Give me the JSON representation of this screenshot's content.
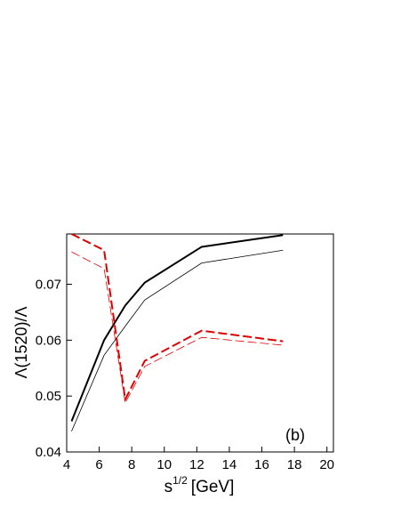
{
  "chart_data": {
    "type": "line",
    "x_label": {
      "base": "s",
      "sup": "1/2",
      "unit": "[GeV]"
    },
    "y_label": "Λ(1520)/Λ",
    "annotation": "(b)",
    "xlim": [
      4,
      20.4
    ],
    "xticks": [
      4,
      6,
      8,
      10,
      12,
      14,
      16,
      18,
      20
    ],
    "ylim": [
      0.04,
      0.079
    ],
    "yticks": [
      0.04,
      0.05,
      0.06,
      0.07
    ],
    "series": [
      {
        "color": "#000000",
        "width": 2,
        "dashed": false,
        "x": [
          4.3,
          6.3,
          7.6,
          8.8,
          12.3,
          17.3
        ],
        "values": [
          0.0455,
          0.06,
          0.0662,
          0.0703,
          0.0767,
          0.0788
        ]
      },
      {
        "color": "#000000",
        "width": 0.8,
        "dashed": false,
        "x": [
          4.3,
          6.3,
          7.6,
          8.8,
          12.3,
          17.3
        ],
        "values": [
          0.0437,
          0.0573,
          0.0625,
          0.0672,
          0.0738,
          0.0761
        ]
      },
      {
        "color": "#e00000",
        "width": 2,
        "dashed": true,
        "x": [
          4.3,
          6.3,
          7.6,
          8.8,
          12.3,
          17.3
        ],
        "values": [
          0.079,
          0.0761,
          0.0494,
          0.0563,
          0.0617,
          0.0598
        ]
      },
      {
        "color": "#e00000",
        "width": 0.8,
        "dashed": true,
        "x": [
          4.3,
          6.3,
          7.6,
          8.8,
          12.3,
          17.3
        ],
        "values": [
          0.0758,
          0.0728,
          0.0488,
          0.0553,
          0.0605,
          0.0591
        ]
      }
    ]
  }
}
